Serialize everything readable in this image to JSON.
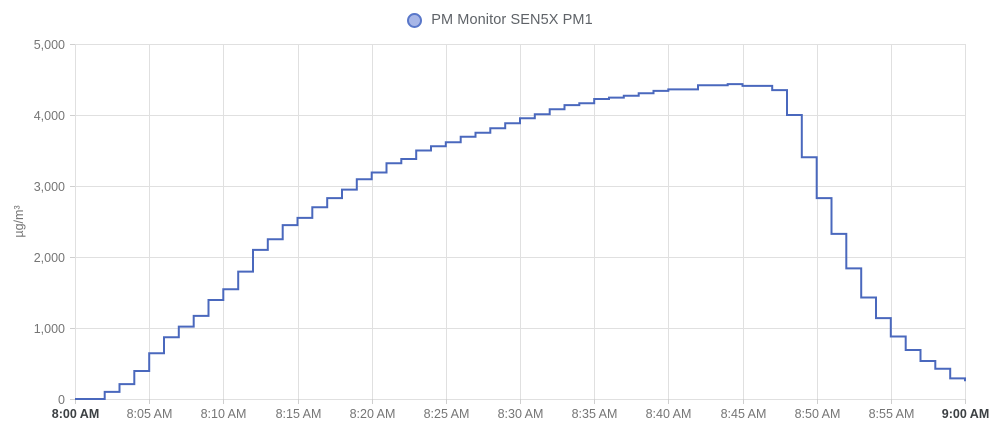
{
  "legend": {
    "series_label": "PM Monitor SEN5X PM1"
  },
  "colors": {
    "line": "#4a68bd",
    "legend_fill": "#a7b6e7",
    "legend_border": "#5977c9",
    "grid": "#e0e0e0",
    "tick_label": "#757575",
    "tick_label_strong": "#3c4043",
    "legend_text": "#5f6368"
  },
  "chart_data": {
    "type": "line",
    "step": true,
    "title": "PM Monitor SEN5X PM1",
    "ylabel": "µg/m³",
    "ylim": [
      0,
      5000
    ],
    "grid": true,
    "legend_position": "top-center",
    "y_tick_values": [
      0,
      1000,
      2000,
      3000,
      4000,
      5000
    ],
    "y_tick_labels": [
      "0",
      "1,000",
      "2,000",
      "3,000",
      "4,000",
      "5,000"
    ],
    "x_tick_minutes": [
      0,
      5,
      10,
      15,
      20,
      25,
      30,
      35,
      40,
      45,
      50,
      55,
      60
    ],
    "x_tick_labels": [
      "8:00 AM",
      "8:05 AM",
      "8:10 AM",
      "8:15 AM",
      "8:20 AM",
      "8:25 AM",
      "8:30 AM",
      "8:35 AM",
      "8:40 AM",
      "8:45 AM",
      "8:50 AM",
      "8:55 AM",
      "9:00 AM"
    ],
    "x_tick_bold": [
      true,
      false,
      false,
      false,
      false,
      false,
      false,
      false,
      false,
      false,
      false,
      false,
      true
    ],
    "x_min": 0,
    "x_max": 60,
    "x_minutes": [
      0,
      1,
      2,
      3,
      4,
      5,
      6,
      7,
      8,
      9,
      10,
      11,
      12,
      13,
      14,
      15,
      16,
      17,
      18,
      19,
      20,
      21,
      22,
      23,
      24,
      25,
      26,
      27,
      28,
      29,
      30,
      31,
      32,
      33,
      34,
      35,
      36,
      37,
      38,
      39,
      40,
      41,
      42,
      43,
      44,
      45,
      46,
      47,
      48,
      49,
      50,
      51,
      52,
      53,
      54,
      55,
      56,
      57,
      58,
      59,
      60
    ],
    "values": [
      0,
      0,
      100,
      210,
      395,
      645,
      870,
      1020,
      1170,
      1395,
      1545,
      1795,
      2100,
      2250,
      2450,
      2550,
      2700,
      2830,
      2950,
      3095,
      3190,
      3320,
      3380,
      3500,
      3560,
      3615,
      3695,
      3750,
      3812,
      3885,
      3955,
      4010,
      4080,
      4140,
      4165,
      4225,
      4245,
      4270,
      4305,
      4340,
      4360,
      4360,
      4420,
      4420,
      4435,
      4410,
      4410,
      4350,
      4000,
      3405,
      2830,
      2325,
      1840,
      1430,
      1140,
      880,
      690,
      535,
      425,
      290,
      250
    ]
  }
}
